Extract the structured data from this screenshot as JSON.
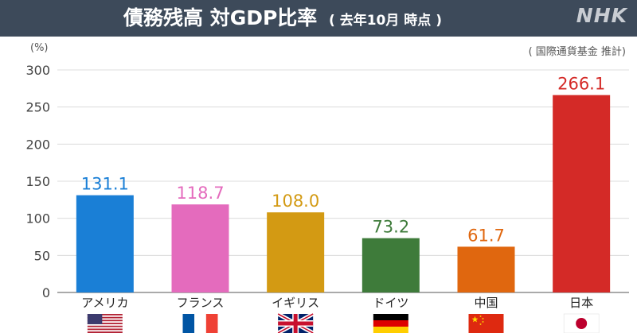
{
  "header": {
    "title_main": "債務残高 対GDP比率",
    "title_sub": "( 去年10月 時点 )",
    "logo": "NHK",
    "source": "( 国際通貨基金 推計)",
    "background": "#3d4a5a"
  },
  "chart_data": {
    "type": "bar",
    "title": "債務残高 対GDP比率",
    "unit_label": "(%)",
    "categories": [
      "アメリカ",
      "フランス",
      "イギリス",
      "ドイツ",
      "中国",
      "日本"
    ],
    "values": [
      131.1,
      118.7,
      108.0,
      73.2,
      61.7,
      266.1
    ],
    "value_labels": [
      "131.1",
      "118.7",
      "108.0",
      "73.2",
      "61.7",
      "266.1"
    ],
    "colors": [
      "#1a7fd6",
      "#e46bbd",
      "#d39a13",
      "#3e7b3a",
      "#e0670f",
      "#d42a27"
    ],
    "ylim": [
      0,
      300
    ],
    "yticks": [
      0,
      50,
      100,
      150,
      200,
      250,
      300
    ],
    "grid": true,
    "flags": [
      "us-flag",
      "france-flag",
      "uk-flag",
      "germany-flag",
      "china-flag",
      "japan-flag"
    ]
  }
}
